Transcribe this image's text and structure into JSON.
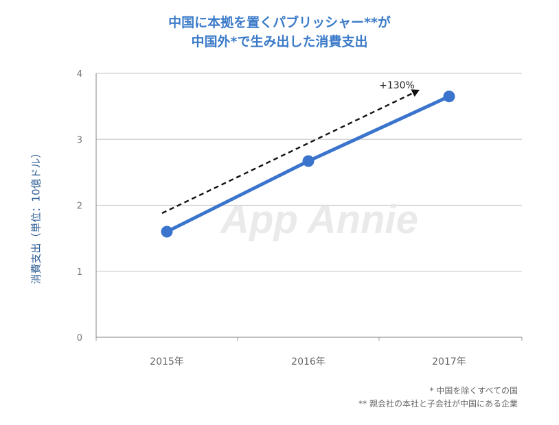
{
  "title": {
    "line1": "中国に本拠を置くパブリッシャー**が",
    "line2": "中国外*で生み出した消費支出"
  },
  "watermark": "App Annie",
  "annotation": "+130%",
  "footnotes": [
    "* 中国を除くすべての国",
    "** 親会社の本社と子会社が中国にある企業"
  ],
  "colors": {
    "title": "#3a7ac8",
    "series": "#3a74cc",
    "ylabel": "#2f5f95"
  },
  "chart_data": {
    "type": "line",
    "categories": [
      "2015年",
      "2016年",
      "2017年"
    ],
    "series": [
      {
        "values": [
          1.6,
          2.67,
          3.65
        ]
      }
    ],
    "ylabel": "消費支出（単位：10億ドル）",
    "yticks": [
      "0",
      "1",
      "2",
      "3",
      "4"
    ],
    "ylim": [
      0,
      4
    ],
    "grid": true,
    "trend_annotation": "+130%"
  }
}
